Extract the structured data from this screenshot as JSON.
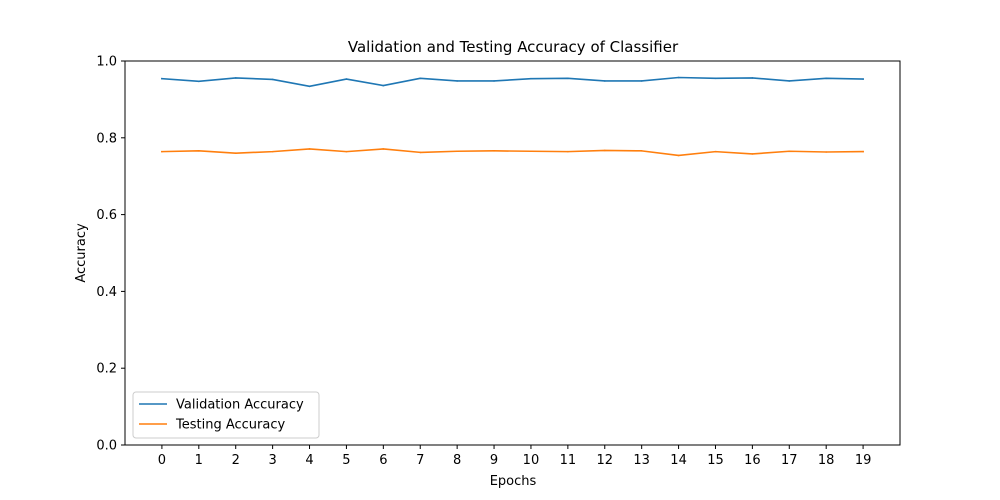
{
  "chart_data": {
    "type": "line",
    "title": "Validation and Testing Accuracy of Classifier",
    "xlabel": "Epochs",
    "ylabel": "Accuracy",
    "x": [
      0,
      1,
      2,
      3,
      4,
      5,
      6,
      7,
      8,
      9,
      10,
      11,
      12,
      13,
      14,
      15,
      16,
      17,
      18,
      19
    ],
    "x_ticks": [
      "0",
      "1",
      "2",
      "3",
      "4",
      "5",
      "6",
      "7",
      "8",
      "9",
      "10",
      "11",
      "12",
      "13",
      "14",
      "15",
      "16",
      "17",
      "18",
      "19"
    ],
    "xlim": [
      -1,
      20
    ],
    "ylim": [
      0.0,
      1.0
    ],
    "y_ticks": [
      "0.0",
      "0.2",
      "0.4",
      "0.6",
      "0.8",
      "1.0"
    ],
    "grid": false,
    "legend_position": "lower-left",
    "series": [
      {
        "name": "Validation Accuracy",
        "color": "#1f77b4",
        "values": [
          0.954,
          0.947,
          0.956,
          0.952,
          0.934,
          0.953,
          0.936,
          0.955,
          0.948,
          0.948,
          0.954,
          0.955,
          0.948,
          0.948,
          0.957,
          0.955,
          0.956,
          0.948,
          0.955,
          0.953
        ]
      },
      {
        "name": "Testing Accuracy",
        "color": "#ff7f0e",
        "values": [
          0.764,
          0.766,
          0.76,
          0.764,
          0.771,
          0.764,
          0.771,
          0.762,
          0.765,
          0.766,
          0.765,
          0.764,
          0.767,
          0.766,
          0.754,
          0.764,
          0.758,
          0.765,
          0.763,
          0.764
        ]
      }
    ]
  }
}
